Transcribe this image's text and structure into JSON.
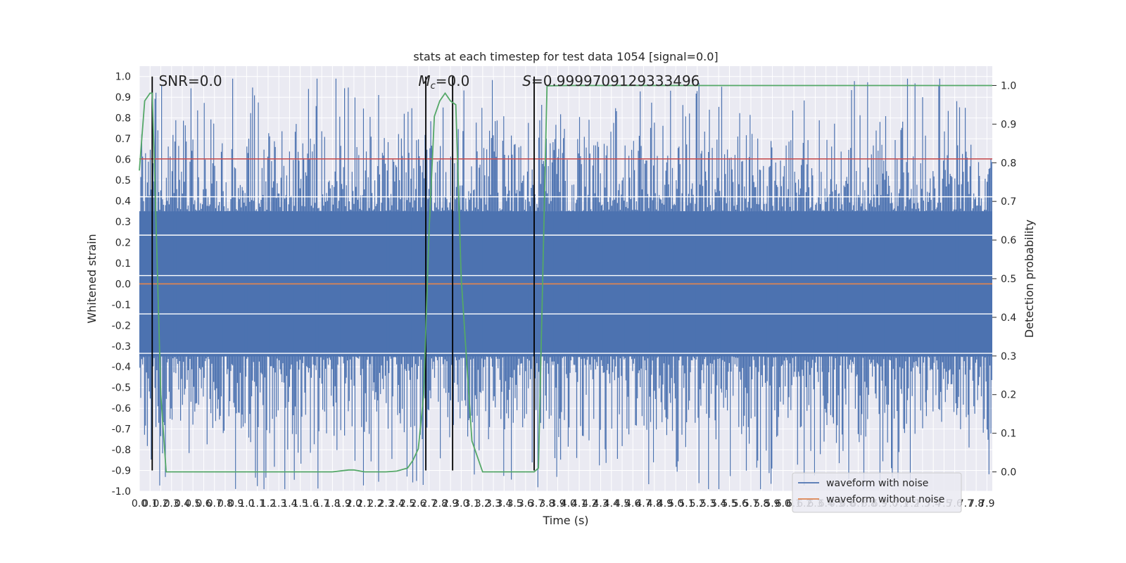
{
  "chart_data": {
    "type": "line",
    "title": "stats at each timestep for test data 1054 [signal=0.0]",
    "xlabel": "Time (s)",
    "ylabel": "Whitened strain",
    "y2label": "Detection probability",
    "xlim": [
      0.0,
      7.95
    ],
    "ylim": [
      -1.0,
      1.05
    ],
    "y2lim": [
      -0.05,
      1.05
    ],
    "x_ticks": [
      "0.0",
      "0.1",
      "0.2",
      "0.3",
      "0.4",
      "0.5",
      "0.6",
      "0.7",
      "0.8",
      "0.9",
      "1.0",
      "1.1",
      "1.2",
      "1.3",
      "1.4",
      "1.5",
      "1.6",
      "1.7",
      "1.8",
      "1.9",
      "2.0",
      "2.1",
      "2.2",
      "2.3",
      "2.4",
      "2.5",
      "2.6",
      "2.7",
      "2.8",
      "2.9",
      "3.0",
      "3.1",
      "3.2",
      "3.3",
      "3.4",
      "3.5",
      "3.6",
      "3.7",
      "3.8",
      "3.9",
      "4.0",
      "4.1",
      "4.2",
      "4.3",
      "4.4",
      "4.5",
      "4.6",
      "4.7",
      "4.8",
      "4.9",
      "5.0",
      "5.1",
      "5.2",
      "5.3",
      "5.4",
      "5.5",
      "5.6",
      "5.7",
      "5.8",
      "5.9",
      "6.0",
      "6.1",
      "6.2",
      "6.3",
      "6.4",
      "6.5",
      "6.6",
      "6.7",
      "6.8",
      "6.9",
      "7.0",
      "7.1",
      "7.2",
      "7.3",
      "7.4",
      "7.5",
      "7.6",
      "7.7",
      "7.8",
      "7.9"
    ],
    "y_ticks": [
      "1.0",
      "0.9",
      "0.8",
      "0.7",
      "0.6",
      "0.5",
      "0.4",
      "0.3",
      "0.2",
      "0.1",
      "0.0",
      "-0.1",
      "-0.2",
      "-0.3",
      "-0.4",
      "-0.5",
      "-0.6",
      "-0.7",
      "-0.8",
      "-0.9",
      "-1.0"
    ],
    "y2_ticks": [
      "1.0",
      "0.9",
      "0.8",
      "0.7",
      "0.6",
      "0.5",
      "0.4",
      "0.3",
      "0.2",
      "0.1",
      "0.0"
    ],
    "series": [
      {
        "name": "waveform with noise",
        "color": "#4c72b0",
        "amplitude_typical": 0.35,
        "amplitude_peak_max": 1.0
      },
      {
        "name": "waveform without noise",
        "color": "#dd8452",
        "values_constant": 0.0
      }
    ],
    "detection_probability": {
      "color": "#55a868",
      "x": [
        0.0,
        0.05,
        0.1,
        0.12,
        0.15,
        0.2,
        0.25,
        0.4,
        0.8,
        1.2,
        1.6,
        1.8,
        1.95,
        2.0,
        2.1,
        2.3,
        2.4,
        2.5,
        2.55,
        2.6,
        2.65,
        2.7,
        2.75,
        2.8,
        2.85,
        2.9,
        2.95,
        3.0,
        3.1,
        3.2,
        3.5,
        3.6,
        3.68,
        3.72,
        3.8,
        4.0,
        7.95
      ],
      "y": [
        0.78,
        0.96,
        0.98,
        0.98,
        0.7,
        0.2,
        0.0,
        0.0,
        0.0,
        0.0,
        0.0,
        0.0,
        0.005,
        0.005,
        0.0,
        0.0,
        0.002,
        0.01,
        0.03,
        0.06,
        0.2,
        0.62,
        0.92,
        0.96,
        0.98,
        0.96,
        0.95,
        0.5,
        0.08,
        0.0,
        0.0,
        0.0,
        0.0,
        0.01,
        0.999,
        1.0,
        1.0
      ]
    },
    "threshold": {
      "color": "#c44e52",
      "value": 0.81
    },
    "vertical_lines_x": [
      0.12,
      2.67,
      2.92,
      3.68
    ],
    "annotations": [
      {
        "text": "SNR=0.0",
        "x": 0.18
      },
      {
        "text_var": "M",
        "text_sub": "c",
        "text_rest": "=0.0",
        "x": 2.6
      },
      {
        "text_var": "S",
        "text_rest": "=0.9999709129333496",
        "x": 3.57
      }
    ],
    "horizontal_white_lines_y": [
      0.04,
      -0.145,
      -0.335,
      0.235,
      0.42
    ],
    "legend": {
      "placement": "bottom-right"
    },
    "grid": true
  }
}
